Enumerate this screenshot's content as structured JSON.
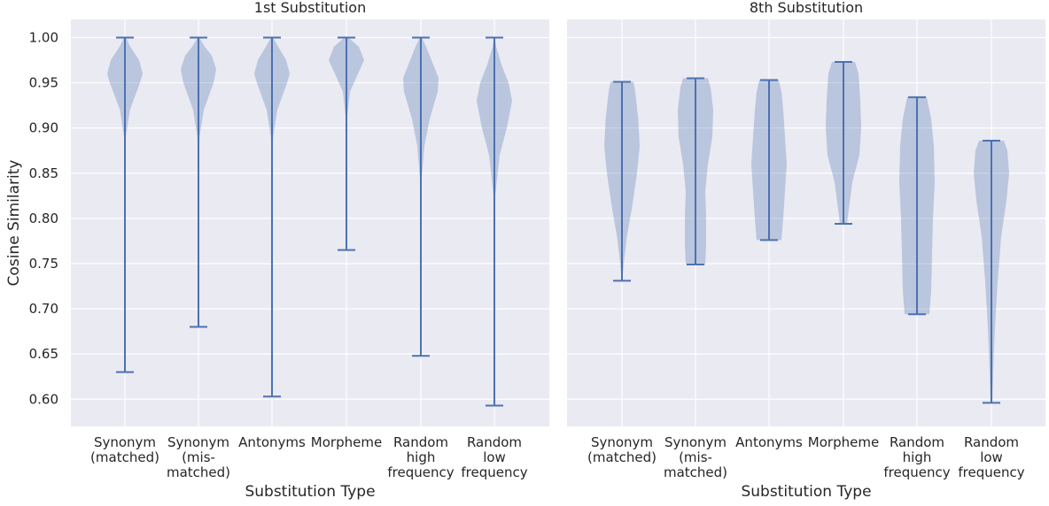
{
  "colors": {
    "violin": "#4c72b0",
    "panel_background": "#eaeaf2",
    "grid": "#ffffff"
  },
  "chart_data": [
    {
      "type": "violin",
      "title": "1st Substitution",
      "xlabel": "Substitution Type",
      "ylabel": "Cosine Similarity",
      "ylim": [
        0.57,
        1.02
      ],
      "yticks": [
        "0.60",
        "0.65",
        "0.70",
        "0.75",
        "0.80",
        "0.85",
        "0.90",
        "0.95",
        "1.00"
      ],
      "grid": true,
      "categories": [
        [
          "Synonym",
          "(matched)"
        ],
        [
          "Synonym",
          "(mis-",
          "matched)"
        ],
        [
          "Antonyms"
        ],
        [
          "Morpheme"
        ],
        [
          "Random",
          "high",
          "frequency"
        ],
        [
          "Random",
          "low",
          "frequency"
        ]
      ],
      "min": [
        0.63,
        0.68,
        0.603,
        0.765,
        0.648,
        0.593
      ],
      "max": [
        1.0,
        1.0,
        1.0,
        1.0,
        1.0,
        1.0
      ],
      "density": [
        [
          [
            0.63,
            0
          ],
          [
            0.8,
            0.003
          ],
          [
            0.86,
            0.008
          ],
          [
            0.89,
            0.05
          ],
          [
            0.92,
            0.28
          ],
          [
            0.95,
            0.85
          ],
          [
            0.96,
            1.0
          ],
          [
            0.975,
            0.8
          ],
          [
            0.99,
            0.3
          ],
          [
            1.0,
            0.05
          ]
        ],
        [
          [
            0.68,
            0
          ],
          [
            0.8,
            0.003
          ],
          [
            0.86,
            0.01
          ],
          [
            0.89,
            0.06
          ],
          [
            0.92,
            0.3
          ],
          [
            0.95,
            0.85
          ],
          [
            0.965,
            1.0
          ],
          [
            0.98,
            0.75
          ],
          [
            0.99,
            0.35
          ],
          [
            1.0,
            0.05
          ]
        ],
        [
          [
            0.603,
            0
          ],
          [
            0.8,
            0.004
          ],
          [
            0.86,
            0.012
          ],
          [
            0.89,
            0.06
          ],
          [
            0.92,
            0.3
          ],
          [
            0.95,
            0.85
          ],
          [
            0.96,
            1.0
          ],
          [
            0.975,
            0.8
          ],
          [
            0.99,
            0.35
          ],
          [
            1.0,
            0.05
          ]
        ],
        [
          [
            0.765,
            0
          ],
          [
            0.88,
            0.004
          ],
          [
            0.91,
            0.03
          ],
          [
            0.94,
            0.2
          ],
          [
            0.96,
            0.65
          ],
          [
            0.975,
            1.0
          ],
          [
            0.99,
            0.7
          ],
          [
            1.0,
            0.1
          ]
        ],
        [
          [
            0.648,
            0
          ],
          [
            0.8,
            0.006
          ],
          [
            0.84,
            0.03
          ],
          [
            0.88,
            0.2
          ],
          [
            0.91,
            0.5
          ],
          [
            0.94,
            0.95
          ],
          [
            0.955,
            1.0
          ],
          [
            0.97,
            0.7
          ],
          [
            0.99,
            0.3
          ],
          [
            1.0,
            0.05
          ]
        ],
        [
          [
            0.593,
            0
          ],
          [
            0.75,
            0.003
          ],
          [
            0.82,
            0.02
          ],
          [
            0.87,
            0.3
          ],
          [
            0.9,
            0.7
          ],
          [
            0.93,
            1.0
          ],
          [
            0.95,
            0.8
          ],
          [
            0.97,
            0.4
          ],
          [
            0.99,
            0.1
          ],
          [
            1.0,
            0.02
          ]
        ]
      ]
    },
    {
      "type": "violin",
      "title": "8th Substitution",
      "xlabel": "Substitution Type",
      "ylabel": "",
      "ylim": [
        0.57,
        1.02
      ],
      "grid": true,
      "categories": [
        [
          "Synonym",
          "(matched)"
        ],
        [
          "Synonym",
          "(mis-",
          "matched)"
        ],
        [
          "Antonyms"
        ],
        [
          "Morpheme"
        ],
        [
          "Random",
          "high",
          "frequency"
        ],
        [
          "Random",
          "low",
          "frequency"
        ]
      ],
      "min": [
        0.731,
        0.749,
        0.776,
        0.794,
        0.694,
        0.596
      ],
      "max": [
        0.951,
        0.955,
        0.953,
        0.973,
        0.934,
        0.886
      ],
      "density": [
        [
          [
            0.731,
            0.02
          ],
          [
            0.75,
            0.1
          ],
          [
            0.78,
            0.28
          ],
          [
            0.81,
            0.55
          ],
          [
            0.85,
            0.85
          ],
          [
            0.88,
            1.0
          ],
          [
            0.91,
            0.92
          ],
          [
            0.94,
            0.75
          ],
          [
            0.951,
            0.65
          ]
        ],
        [
          [
            0.749,
            0.55
          ],
          [
            0.77,
            0.6
          ],
          [
            0.8,
            0.6
          ],
          [
            0.83,
            0.55
          ],
          [
            0.86,
            0.7
          ],
          [
            0.89,
            0.95
          ],
          [
            0.92,
            1.0
          ],
          [
            0.945,
            0.85
          ],
          [
            0.955,
            0.7
          ]
        ],
        [
          [
            0.776,
            0.7
          ],
          [
            0.8,
            0.8
          ],
          [
            0.83,
            0.9
          ],
          [
            0.86,
            1.0
          ],
          [
            0.89,
            0.9
          ],
          [
            0.92,
            0.8
          ],
          [
            0.94,
            0.7
          ],
          [
            0.953,
            0.55
          ]
        ],
        [
          [
            0.794,
            0.2
          ],
          [
            0.81,
            0.3
          ],
          [
            0.84,
            0.5
          ],
          [
            0.87,
            0.9
          ],
          [
            0.9,
            1.0
          ],
          [
            0.93,
            0.95
          ],
          [
            0.96,
            0.85
          ],
          [
            0.973,
            0.65
          ]
        ],
        [
          [
            0.694,
            0.7
          ],
          [
            0.72,
            0.8
          ],
          [
            0.76,
            0.85
          ],
          [
            0.8,
            0.9
          ],
          [
            0.84,
            1.0
          ],
          [
            0.88,
            0.95
          ],
          [
            0.91,
            0.8
          ],
          [
            0.934,
            0.55
          ]
        ],
        [
          [
            0.596,
            0.05
          ],
          [
            0.63,
            0.1
          ],
          [
            0.68,
            0.2
          ],
          [
            0.73,
            0.35
          ],
          [
            0.78,
            0.55
          ],
          [
            0.82,
            0.85
          ],
          [
            0.85,
            1.0
          ],
          [
            0.875,
            0.9
          ],
          [
            0.886,
            0.7
          ]
        ]
      ]
    }
  ]
}
